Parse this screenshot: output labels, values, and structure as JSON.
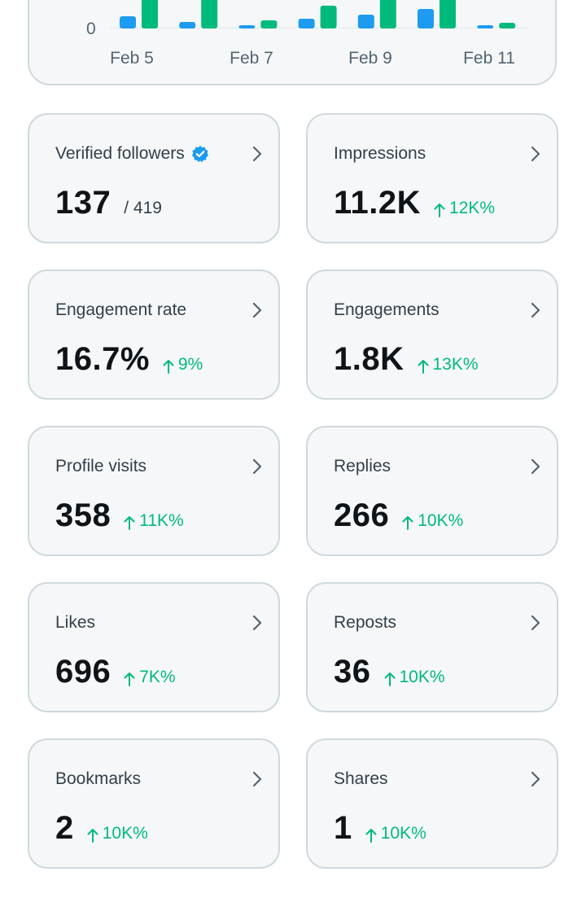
{
  "chart": {
    "y_tick": "0",
    "x_ticks": [
      "Feb 5",
      "Feb 7",
      "Feb 9",
      "Feb 11"
    ],
    "colors": {
      "blue": "#1d9bf0",
      "green": "#00ba7c"
    }
  },
  "chart_data": {
    "type": "bar",
    "categories": [
      "Feb 5",
      "Feb 6",
      "Feb 7",
      "Feb 8",
      "Feb 9",
      "Feb 10",
      "Feb 11"
    ],
    "series": [
      {
        "values": [
          14,
          7,
          3,
          11,
          16,
          23,
          3
        ]
      },
      {
        "values": [
          40,
          40,
          9,
          27,
          40,
          40,
          6
        ]
      }
    ],
    "ylim": [
      0,
      40
    ],
    "grid": false
  },
  "cards": [
    {
      "title": "Verified followers",
      "verified": true,
      "value": "137",
      "sub": "/ 419",
      "change": ""
    },
    {
      "title": "Impressions",
      "verified": false,
      "value": "11.2K",
      "sub": "",
      "change": "12K%"
    },
    {
      "title": "Engagement rate",
      "verified": false,
      "value": "16.7%",
      "sub": "",
      "change": "9%"
    },
    {
      "title": "Engagements",
      "verified": false,
      "value": "1.8K",
      "sub": "",
      "change": "13K%"
    },
    {
      "title": "Profile visits",
      "verified": false,
      "value": "358",
      "sub": "",
      "change": "11K%"
    },
    {
      "title": "Replies",
      "verified": false,
      "value": "266",
      "sub": "",
      "change": "10K%"
    },
    {
      "title": "Likes",
      "verified": false,
      "value": "696",
      "sub": "",
      "change": "7K%"
    },
    {
      "title": "Reposts",
      "verified": false,
      "value": "36",
      "sub": "",
      "change": "10K%"
    },
    {
      "title": "Bookmarks",
      "verified": false,
      "value": "2",
      "sub": "",
      "change": "10K%"
    },
    {
      "title": "Shares",
      "verified": false,
      "value": "1",
      "sub": "",
      "change": "10K%"
    }
  ],
  "colors": {
    "positive": "#00ba7c",
    "verified_badge": "#1d9bf0",
    "card_bg": "#f5f7f8",
    "card_border": "#cfd9de"
  }
}
